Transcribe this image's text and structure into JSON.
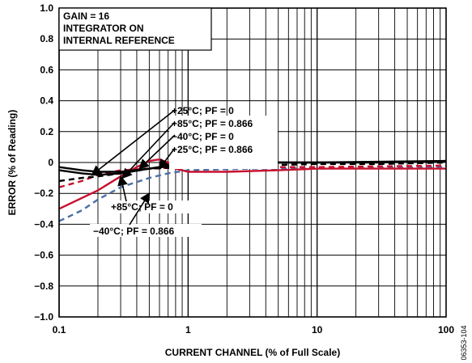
{
  "chart_data": {
    "type": "line",
    "xscale": "log",
    "xlim": [
      0.1,
      100
    ],
    "ylim": [
      -1.0,
      1.0
    ],
    "grid": true,
    "xlabel": "CURRENT CHANNEL (% of Full Scale)",
    "ylabel": "ERROR (% of Reading)",
    "x_ticks": [
      "0.1",
      "1",
      "10",
      "100"
    ],
    "y_ticks": [
      "−1.0",
      "−0.8",
      "−0.6",
      "−0.4",
      "−0.2",
      "0",
      "0.2",
      "0.4",
      "0.6",
      "0.8",
      "1.0"
    ],
    "conditions": [
      "GAIN = 16",
      "INTEGRATOR ON",
      "INTERNAL REFERENCE"
    ],
    "figure_id": "06353-104",
    "series": [
      {
        "name": "+25°C; PF = 0",
        "color": "#000000",
        "dash": "solid",
        "points": [
          [
            0.1,
            -0.05
          ],
          [
            0.15,
            -0.07
          ],
          [
            0.2,
            -0.08
          ],
          [
            0.3,
            -0.07
          ],
          [
            0.5,
            -0.04
          ],
          [
            0.7,
            -0.02
          ],
          [
            1,
            -0.02
          ],
          [
            2,
            -0.01
          ],
          [
            5,
            0.0
          ],
          [
            10,
            0.0
          ],
          [
            30,
            0.0
          ],
          [
            100,
            0.01
          ]
        ]
      },
      {
        "name": "+85°C; PF = 0.866",
        "color": "#c8102e",
        "dash": "solid",
        "points": [
          [
            0.1,
            -0.3
          ],
          [
            0.2,
            -0.18
          ],
          [
            0.3,
            -0.09
          ],
          [
            0.4,
            -0.03
          ],
          [
            0.5,
            0.01
          ],
          [
            0.6,
            0.02
          ],
          [
            0.7,
            0.0
          ],
          [
            0.8,
            -0.04
          ],
          [
            1,
            -0.06
          ],
          [
            2,
            -0.06
          ],
          [
            5,
            -0.05
          ],
          [
            10,
            -0.04
          ],
          [
            30,
            -0.04
          ],
          [
            100,
            -0.04
          ]
        ]
      },
      {
        "name": "−40°C; PF = 0",
        "color": "#c8102e",
        "dash": "dashed",
        "points": [
          [
            0.1,
            -0.16
          ],
          [
            0.15,
            -0.12
          ],
          [
            0.2,
            -0.08
          ],
          [
            0.3,
            -0.05
          ],
          [
            0.5,
            -0.04
          ],
          [
            1,
            -0.03
          ],
          [
            3,
            -0.03
          ],
          [
            10,
            -0.03
          ],
          [
            100,
            -0.02
          ]
        ]
      },
      {
        "name": "+25°C; PF = 0.866",
        "color": "#000000",
        "dash": "dashed",
        "points": [
          [
            0.1,
            -0.12
          ],
          [
            0.15,
            -0.1
          ],
          [
            0.2,
            -0.09
          ],
          [
            0.3,
            -0.07
          ],
          [
            0.5,
            -0.04
          ],
          [
            1,
            -0.03
          ],
          [
            3,
            -0.02
          ],
          [
            10,
            -0.01
          ],
          [
            30,
            -0.01
          ],
          [
            100,
            0.0
          ]
        ]
      },
      {
        "name": "+85°C; PF = 0",
        "color": "#000000",
        "dash": "solid",
        "points": [
          [
            0.1,
            -0.03
          ],
          [
            0.15,
            -0.05
          ],
          [
            0.2,
            -0.06
          ],
          [
            0.3,
            -0.06
          ],
          [
            0.5,
            -0.04
          ],
          [
            1,
            -0.01
          ],
          [
            3,
            0.0
          ],
          [
            10,
            0.0
          ],
          [
            100,
            0.01
          ]
        ]
      },
      {
        "name": "−40°C; PF = 0.866",
        "color": "#4a6fa5",
        "dash": "dashed",
        "points": [
          [
            0.1,
            -0.38
          ],
          [
            0.15,
            -0.31
          ],
          [
            0.2,
            -0.24
          ],
          [
            0.3,
            -0.16
          ],
          [
            0.5,
            -0.1
          ],
          [
            0.7,
            -0.07
          ],
          [
            1,
            -0.05
          ],
          [
            3,
            -0.04
          ],
          [
            10,
            -0.04
          ],
          [
            100,
            -0.03
          ]
        ]
      }
    ],
    "annotations": [
      {
        "label": "+25°C; PF = 0",
        "series": "+25°C; PF = 0",
        "target": [
          0.18,
          -0.08
        ]
      },
      {
        "label": "+85°C; PF = 0.866",
        "series": "+85°C; PF = 0.866",
        "target": [
          0.31,
          -0.1
        ]
      },
      {
        "label": "−40°C; PF = 0",
        "series": "−40°C; PF = 0",
        "target": [
          0.42,
          -0.04
        ]
      },
      {
        "label": "+25°C; PF = 0.866",
        "series": "+25°C; PF = 0.866",
        "target": [
          0.6,
          -0.04
        ]
      },
      {
        "label": "+85°C; PF = 0",
        "series": "+85°C; PF = 0",
        "target": [
          0.3,
          -0.09
        ]
      },
      {
        "label": "−40°C; PF = 0.866",
        "series": "−40°C; PF = 0.866",
        "target": [
          0.5,
          -0.2
        ]
      }
    ]
  }
}
